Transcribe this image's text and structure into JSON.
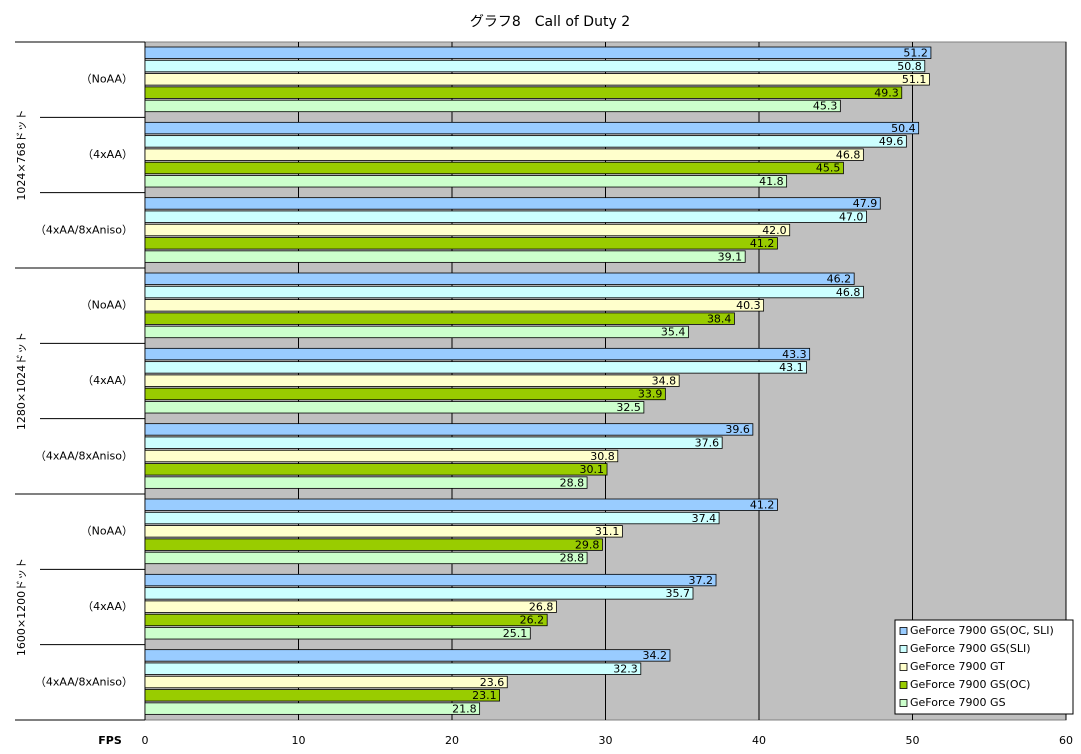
{
  "chart_data": {
    "type": "hbar",
    "title": "グラフ8　Call of Duty 2",
    "xlabel": "FPS",
    "groups": [
      "1024×768ドット",
      "1280×1024ドット",
      "1600×1200ドット"
    ],
    "categories": [
      "（NoAA）",
      "（4xAA）",
      "（4xAA/8xAniso）",
      "（NoAA）",
      "（4xAA）",
      "（4xAA/8xAniso）",
      "（NoAA）",
      "（4xAA）",
      "（4xAA/8xAniso）"
    ],
    "series": [
      {
        "name": "GeForce 7900 GS(OC, SLI)",
        "color": "#99ccff",
        "values": [
          51.2,
          50.4,
          47.9,
          46.2,
          43.3,
          39.6,
          41.2,
          37.2,
          34.2
        ],
        "value_labels": [
          "51.2",
          "50.4",
          "47.9",
          "46.2",
          "43.3",
          "39.6",
          "41.2",
          "37.2",
          "34.2"
        ]
      },
      {
        "name": "GeForce 7900 GS(SLI)",
        "color": "#ccffff",
        "values": [
          50.8,
          49.6,
          47.0,
          46.8,
          43.1,
          37.6,
          37.4,
          35.7,
          32.3
        ],
        "value_labels": [
          "50.8",
          "49.6",
          "47.0",
          "46.8",
          "43.1",
          "37.6",
          "37.4",
          "35.7",
          "32.3"
        ]
      },
      {
        "name": "GeForce 7900 GT",
        "color": "#ffffcc",
        "values": [
          51.1,
          46.8,
          42.0,
          40.3,
          34.8,
          30.8,
          31.1,
          26.8,
          23.6
        ],
        "value_labels": [
          "51.1",
          "46.8",
          "42.0",
          "40.3",
          "34.8",
          "30.8",
          "31.1",
          "26.8",
          "23.6"
        ]
      },
      {
        "name": "GeForce 7900 GS(OC)",
        "color": "#99cc00",
        "values": [
          49.3,
          45.5,
          41.2,
          38.4,
          33.9,
          30.1,
          29.8,
          26.2,
          23.1
        ],
        "value_labels": [
          "49.3",
          "45.5",
          "41.2",
          "38.4",
          "33.9",
          "30.1",
          "29.8",
          "26.2",
          "23.1"
        ]
      },
      {
        "name": "GeForce 7900 GS",
        "color": "#ccffcc",
        "values": [
          45.3,
          41.8,
          39.1,
          35.4,
          32.5,
          28.8,
          28.8,
          25.1,
          21.8
        ],
        "value_labels": [
          "45.3",
          "41.8",
          "39.1",
          "35.4",
          "32.5",
          "28.8",
          "28.8",
          "25.1",
          "21.8"
        ]
      }
    ],
    "xlim": [
      0,
      60
    ],
    "xticks": [
      0,
      10,
      20,
      30,
      40,
      50,
      60
    ],
    "grid": true,
    "background": "#c0c0c0",
    "legend": "lower right"
  }
}
